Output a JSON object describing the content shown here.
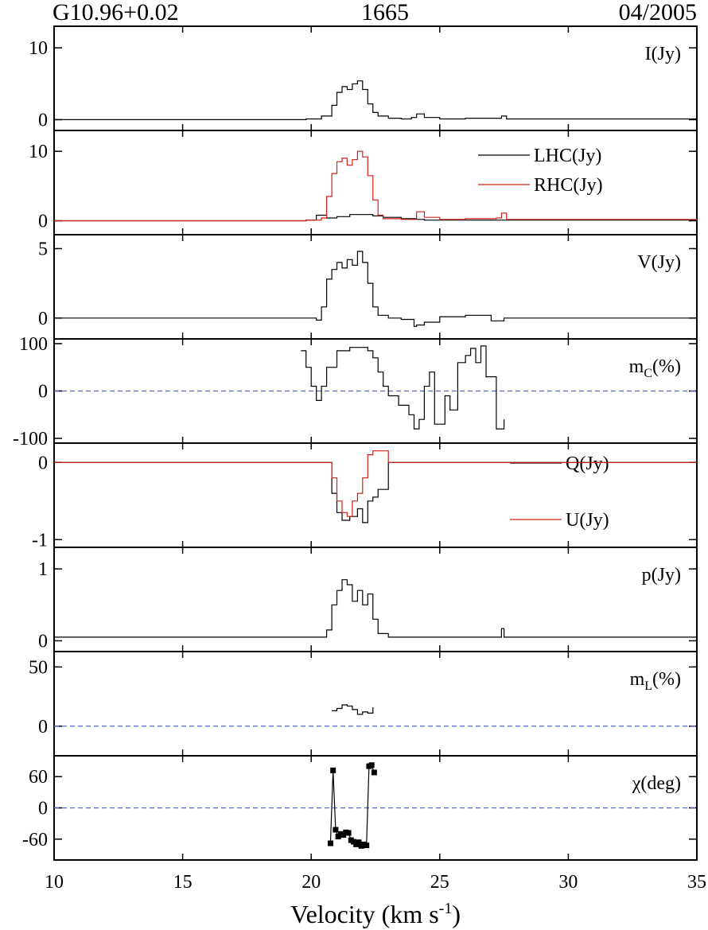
{
  "header": {
    "source": "G10.96+0.02",
    "frequency": "1665",
    "date": "04/2005"
  },
  "chart_data": [
    {
      "type": "line",
      "panel_label": "I(Jy)",
      "ylim": [
        -1.5,
        13
      ],
      "yticks": [
        0,
        10
      ],
      "series": [
        {
          "color": "#000000",
          "x": [
            10,
            19.8,
            20.4,
            20.8,
            21.0,
            21.2,
            21.4,
            21.6,
            21.8,
            22.0,
            22.2,
            22.4,
            22.6,
            23.0,
            23.5,
            23.9,
            24.1,
            24.4,
            25.0,
            26.0,
            27.2,
            27.4,
            27.6,
            28.0,
            35
          ],
          "y": [
            0,
            0.1,
            0.5,
            2.0,
            3.8,
            4.6,
            4.2,
            5.0,
            5.4,
            4.2,
            2.2,
            1.0,
            0.5,
            0.2,
            0.1,
            0.3,
            0.8,
            0.3,
            0.1,
            0.2,
            0.2,
            0.5,
            0.1,
            0.1,
            0
          ]
        }
      ]
    },
    {
      "type": "line",
      "panel_label": "",
      "ylim": [
        -2,
        13
      ],
      "yticks": [
        0,
        10
      ],
      "series": [
        {
          "name": "LHC(Jy)",
          "color": "#000000",
          "x": [
            10,
            19.8,
            20.2,
            20.6,
            21.0,
            21.5,
            22.0,
            22.4,
            22.8,
            23.5,
            24.1,
            24.4,
            25.0,
            27.3,
            27.6,
            35
          ],
          "y": [
            0,
            0.1,
            0.8,
            0.4,
            0.6,
            0.9,
            0.9,
            0.7,
            0.5,
            0.3,
            0.2,
            0.1,
            0.1,
            0.1,
            0.1,
            0
          ]
        },
        {
          "name": "RHC(Jy)",
          "color": "#d02018",
          "x": [
            10,
            19.8,
            20.4,
            20.6,
            20.8,
            21.0,
            21.2,
            21.4,
            21.6,
            21.8,
            22.0,
            22.2,
            22.4,
            22.6,
            22.8,
            23.5,
            24.1,
            24.4,
            25.0,
            26.0,
            27.2,
            27.4,
            27.6,
            35
          ],
          "y": [
            0,
            0.1,
            0.4,
            3.5,
            6.8,
            8.5,
            9.0,
            8.0,
            8.8,
            10.0,
            9.2,
            6.5,
            3.0,
            0.8,
            0.3,
            0.2,
            1.3,
            0.5,
            0.2,
            0.3,
            0.4,
            1.1,
            0.2,
            0
          ]
        }
      ]
    },
    {
      "type": "line",
      "panel_label": "V(Jy)",
      "ylim": [
        -1.5,
        6
      ],
      "yticks": [
        0,
        5
      ],
      "series": [
        {
          "color": "#000000",
          "x": [
            10,
            19.5,
            20.0,
            20.2,
            20.4,
            20.6,
            20.8,
            21.0,
            21.2,
            21.4,
            21.6,
            21.8,
            22.0,
            22.2,
            22.4,
            22.6,
            23.0,
            23.5,
            24.0,
            24.1,
            24.4,
            25.0,
            26.0,
            27.0,
            27.5,
            28.0,
            35
          ],
          "y": [
            0,
            0,
            0,
            -0.15,
            0.8,
            2.8,
            3.5,
            4.0,
            3.6,
            4.2,
            3.8,
            4.8,
            4.0,
            2.5,
            0.8,
            0.2,
            0,
            -0.1,
            -0.6,
            -0.5,
            -0.3,
            0.1,
            0.2,
            -0.2,
            0,
            0,
            0
          ]
        }
      ]
    },
    {
      "type": "line",
      "panel_label": "m_C(%)",
      "label_main": "m",
      "label_sub": "C",
      "label_tail": "(%)",
      "ylim": [
        -110,
        110
      ],
      "yticks": [
        -100,
        0,
        100
      ],
      "hline": 0,
      "hline_color": "#5560c0",
      "series": [
        {
          "color": "#000000",
          "x": [
            19.6,
            19.8,
            20.0,
            20.2,
            20.4,
            20.6,
            21.0,
            21.5,
            22.0,
            22.2,
            22.4,
            22.6,
            22.8,
            23.0,
            23.4,
            23.8,
            24.0,
            24.2,
            24.4,
            24.6,
            24.8,
            25.2,
            25.4,
            25.7,
            26.0,
            26.2,
            26.4,
            26.6,
            26.8,
            27.2,
            27.5
          ],
          "y": [
            85,
            50,
            10,
            -20,
            10,
            50,
            85,
            92,
            92,
            85,
            70,
            40,
            10,
            -10,
            -30,
            -50,
            -80,
            -60,
            10,
            40,
            -70,
            -10,
            -40,
            60,
            75,
            90,
            60,
            95,
            30,
            -80,
            -60
          ]
        }
      ]
    },
    {
      "type": "line",
      "panel_label": "",
      "ylim": [
        -1.1,
        0.25
      ],
      "yticks": [
        -1,
        0
      ],
      "series": [
        {
          "name": "Q(Jy)",
          "color": "#000000",
          "x": [
            10,
            20.4,
            20.8,
            21.0,
            21.2,
            21.5,
            21.8,
            22.0,
            22.2,
            22.4,
            22.6,
            23.0,
            35
          ],
          "y": [
            0,
            0,
            -0.4,
            -0.65,
            -0.75,
            -0.7,
            -0.6,
            -0.78,
            -0.5,
            -0.45,
            -0.35,
            0,
            0
          ]
        },
        {
          "name": "U(Jy)",
          "color": "#d02018",
          "x": [
            10,
            20.4,
            20.8,
            21.0,
            21.2,
            21.4,
            21.6,
            21.8,
            22.0,
            22.2,
            22.4,
            23.0,
            35
          ],
          "y": [
            0,
            0,
            -0.2,
            -0.5,
            -0.65,
            -0.7,
            -0.5,
            -0.4,
            -0.2,
            0.1,
            0.15,
            0,
            0
          ]
        }
      ]
    },
    {
      "type": "line",
      "panel_label": "p(Jy)",
      "ylim": [
        -0.15,
        1.3
      ],
      "yticks": [
        0,
        1
      ],
      "series": [
        {
          "color": "#000000",
          "x": [
            10,
            20.4,
            20.6,
            20.8,
            21.0,
            21.2,
            21.4,
            21.6,
            21.8,
            22.0,
            22.2,
            22.4,
            22.6,
            23.0,
            27.3,
            27.4,
            27.5,
            35
          ],
          "y": [
            0.05,
            0.05,
            0.15,
            0.5,
            0.7,
            0.85,
            0.78,
            0.55,
            0.7,
            0.5,
            0.65,
            0.3,
            0.1,
            0.05,
            0.05,
            0.17,
            0.05,
            0.05
          ]
        }
      ]
    },
    {
      "type": "line",
      "panel_label": "m_L(%)",
      "label_main": "m",
      "label_sub": "L",
      "label_tail": "(%)",
      "ylim": [
        -25,
        63
      ],
      "yticks": [
        0,
        50
      ],
      "hline": 0,
      "hline_color": "#5560c0",
      "series": [
        {
          "color": "#000000",
          "x": [
            20.8,
            21.0,
            21.2,
            21.4,
            21.6,
            21.8,
            22.0,
            22.2,
            22.4
          ],
          "y": [
            13,
            15,
            18,
            17,
            14,
            10,
            12,
            11,
            16
          ]
        }
      ]
    },
    {
      "type": "scatter",
      "panel_label": "χ(deg)",
      "ylim": [
        -100,
        100
      ],
      "yticks": [
        -60,
        0,
        60
      ],
      "hline": 0,
      "hline_color": "#5560c0",
      "series": [
        {
          "color": "#000000",
          "x": [
            20.75,
            20.85,
            20.95,
            21.05,
            21.15,
            21.25,
            21.35,
            21.45,
            21.55,
            21.65,
            21.75,
            21.85,
            21.95,
            22.05,
            22.15,
            22.25,
            22.35,
            22.45
          ],
          "y": [
            -68,
            72,
            -42,
            -55,
            -50,
            -52,
            -47,
            -48,
            -62,
            -65,
            -70,
            -66,
            -73,
            -70,
            -72,
            80,
            82,
            68
          ]
        }
      ]
    },
    {
      "axis": "x",
      "xlim": [
        10,
        35
      ],
      "xticks": [
        10,
        15,
        20,
        25,
        30,
        35
      ],
      "xlabel_main": "Velocity (km s",
      "xlabel_sup": "-1",
      "xlabel_tail": ")"
    }
  ]
}
